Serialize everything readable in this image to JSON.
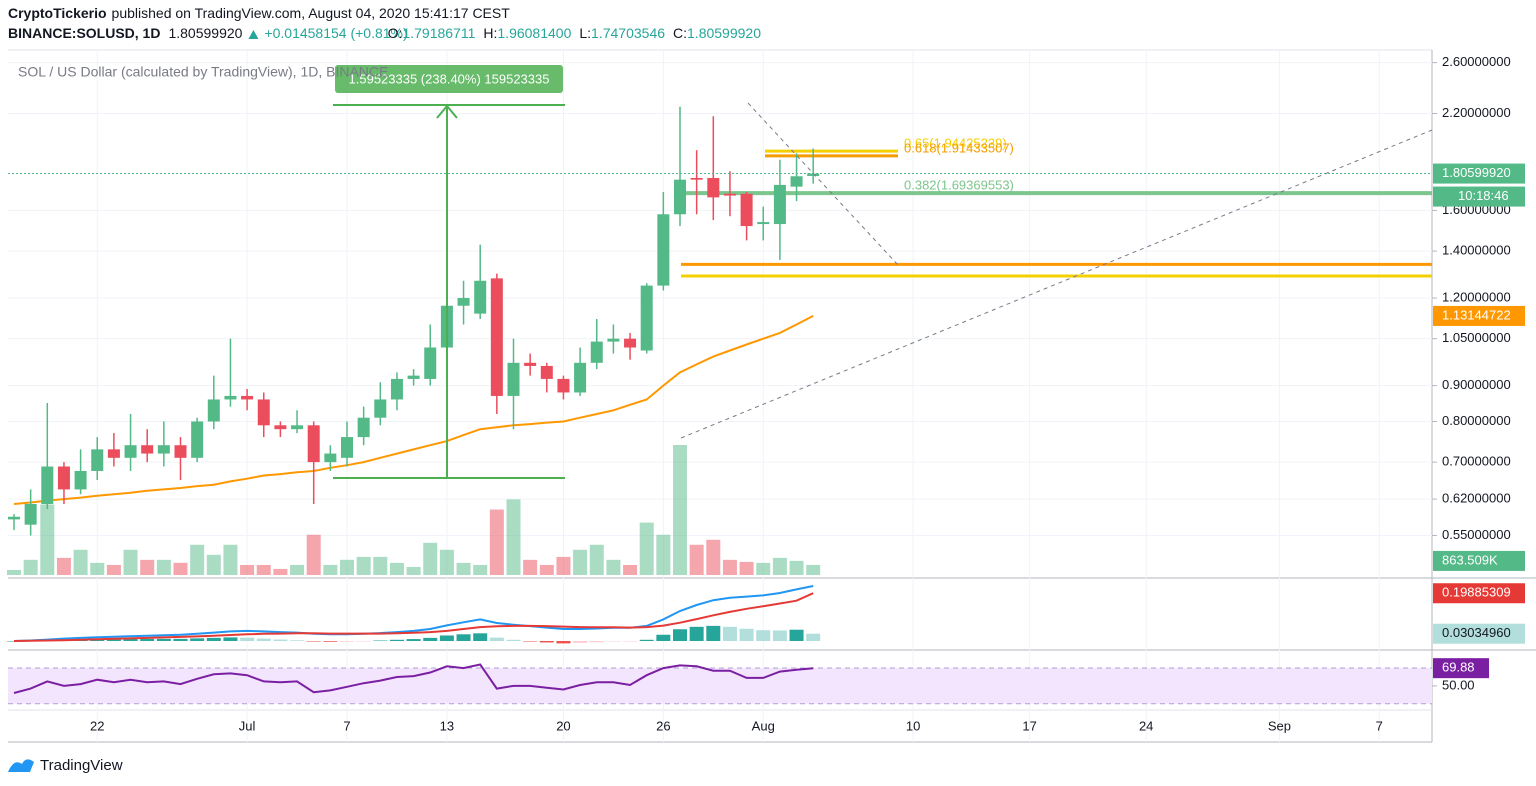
{
  "header": {
    "author": "CryptoTickerio",
    "byline": "published on TradingView.com, August 04, 2020 15:41:17 CEST",
    "symbol": "BINANCE:SOLUSD, 1D",
    "last": "1.80599920",
    "change": "+0.01458154 (+0.81%)",
    "ohlc": [
      {
        "k": "O:",
        "v": "1.79186711"
      },
      {
        "k": "H:",
        "v": "1.96081400"
      },
      {
        "k": "L:",
        "v": "1.74703546"
      },
      {
        "k": "C:",
        "v": "1.80599920"
      }
    ]
  },
  "footer": {
    "brand": "TradingView"
  },
  "chart_data": {
    "type": "candlestick",
    "title": "SOL / US Dollar (calculated by TradingView), 1D, BINANCE",
    "measure_label": "1.59523335 (238.40%) 159523335",
    "categories": [
      null,
      null,
      null,
      null,
      null,
      "22",
      null,
      null,
      null,
      null,
      null,
      null,
      null,
      null,
      "Jul",
      null,
      null,
      null,
      null,
      null,
      "7",
      null,
      null,
      null,
      null,
      null,
      "13",
      null,
      null,
      null,
      null,
      null,
      null,
      "20",
      null,
      null,
      null,
      null,
      null,
      "26",
      null,
      null,
      null,
      null,
      null,
      "Aug",
      null,
      null,
      null,
      null,
      null,
      null,
      null,
      null,
      "10",
      null,
      null,
      null,
      null,
      null,
      null,
      "17",
      null,
      null,
      null,
      null,
      null,
      null,
      "24",
      null,
      null,
      null,
      null,
      null,
      null,
      null,
      "Sep",
      null,
      null,
      null,
      null,
      null,
      "7",
      null,
      null,
      null
    ],
    "open": [
      0.58,
      0.57,
      0.61,
      0.69,
      0.64,
      0.68,
      0.73,
      0.71,
      0.74,
      0.72,
      0.74,
      0.71,
      0.8,
      0.86,
      0.87,
      0.86,
      0.79,
      0.78,
      0.79,
      0.7,
      0.71,
      0.76,
      0.81,
      0.86,
      0.92,
      0.92,
      1.02,
      1.17,
      1.14,
      1.28,
      0.87,
      0.97,
      0.96,
      0.92,
      0.88,
      0.97,
      1.04,
      1.05,
      1.01,
      1.25,
      1.58,
      1.78,
      1.78,
      1.69,
      1.69,
      1.53,
      1.53,
      1.73,
      1.79186711,
      null,
      null,
      null,
      null,
      null,
      null,
      null,
      null,
      null,
      null,
      null,
      null,
      null,
      null,
      null,
      null,
      null,
      null,
      null,
      null,
      null,
      null,
      null,
      null,
      null,
      null,
      null,
      null,
      null,
      null,
      null,
      null,
      null,
      null,
      null,
      null,
      null
    ],
    "high": [
      0.59,
      0.64,
      0.85,
      0.7,
      0.73,
      0.76,
      0.77,
      0.82,
      0.78,
      0.8,
      0.76,
      0.81,
      0.93,
      1.05,
      0.89,
      0.88,
      0.8,
      0.83,
      0.8,
      0.74,
      0.8,
      0.84,
      0.91,
      0.94,
      0.95,
      1.1,
      1.33,
      1.27,
      1.43,
      1.3,
      1.05,
      1.0,
      0.97,
      0.93,
      1.02,
      1.12,
      1.1,
      1.07,
      1.26,
      1.7,
      2.25,
      1.95,
      2.18,
      1.82,
      1.7,
      1.62,
      1.89,
      1.93,
      1.960814,
      null,
      null,
      null,
      null,
      null,
      null,
      null,
      null,
      null,
      null,
      null,
      null,
      null,
      null,
      null,
      null,
      null,
      null,
      null,
      null,
      null,
      null,
      null,
      null,
      null,
      null,
      null,
      null,
      null,
      null,
      null,
      null,
      null,
      null,
      null,
      null,
      null
    ],
    "low": [
      0.56,
      0.55,
      0.6,
      0.61,
      0.63,
      0.66,
      0.69,
      0.68,
      0.7,
      0.69,
      0.66,
      0.7,
      0.78,
      0.84,
      0.83,
      0.76,
      0.76,
      0.77,
      0.61,
      0.68,
      0.69,
      0.74,
      0.79,
      0.83,
      0.9,
      0.9,
      1.0,
      1.1,
      1.12,
      0.82,
      0.78,
      0.93,
      0.88,
      0.86,
      0.87,
      0.95,
      1.0,
      0.98,
      1.0,
      1.23,
      1.52,
      1.58,
      1.55,
      1.57,
      1.45,
      1.45,
      1.36,
      1.65,
      1.74703546,
      null,
      null,
      null,
      null,
      null,
      null,
      null,
      null,
      null,
      null,
      null,
      null,
      null,
      null,
      null,
      null,
      null,
      null,
      null,
      null,
      null,
      null,
      null,
      null,
      null,
      null,
      null,
      null,
      null,
      null,
      null,
      null,
      null,
      null,
      null,
      null,
      null
    ],
    "close": [
      0.585,
      0.61,
      0.69,
      0.64,
      0.68,
      0.73,
      0.71,
      0.74,
      0.72,
      0.74,
      0.71,
      0.8,
      0.86,
      0.87,
      0.86,
      0.79,
      0.78,
      0.79,
      0.7,
      0.72,
      0.76,
      0.81,
      0.86,
      0.92,
      0.93,
      1.02,
      1.17,
      1.2,
      1.27,
      0.87,
      0.97,
      0.96,
      0.92,
      0.88,
      0.97,
      1.04,
      1.05,
      1.02,
      1.25,
      1.58,
      1.77,
      1.77,
      1.67,
      1.68,
      1.52,
      1.54,
      1.74,
      1.79,
      1.8059992,
      null,
      null,
      null,
      null,
      null,
      null,
      null,
      null,
      null,
      null,
      null,
      null,
      null,
      null,
      null,
      null,
      null,
      null,
      null,
      null,
      null,
      null,
      null,
      null,
      null,
      null,
      null,
      null,
      null,
      null,
      null,
      null,
      null,
      null,
      null,
      null,
      null
    ],
    "volume": [
      430000,
      1300000,
      6040000,
      1470000,
      2160000,
      1040000,
      860000,
      2160000,
      1300000,
      1300000,
      1040000,
      2590000,
      1730000,
      2590000,
      860000,
      860000,
      520000,
      860000,
      3450000,
      860000,
      1300000,
      1550000,
      1550000,
      1040000,
      690000,
      2760000,
      2160000,
      1040000,
      860000,
      5610000,
      6480000,
      1300000,
      860000,
      1550000,
      2160000,
      2590000,
      1300000,
      860000,
      4490000,
      3450000,
      11140000,
      2590000,
      3020000,
      1300000,
      1120000,
      1040000,
      1470000,
      1210000,
      863509,
      null,
      null,
      null,
      null,
      null,
      null,
      null,
      null,
      null,
      null,
      null,
      null,
      null,
      null,
      null,
      null,
      null,
      null,
      null,
      null,
      null,
      null,
      null,
      null,
      null,
      null,
      null,
      null,
      null,
      null,
      null,
      null,
      null,
      null,
      null,
      null,
      null
    ],
    "ma": [
      0.61,
      0.613,
      0.617,
      0.62,
      0.623,
      0.627,
      0.63,
      0.633,
      0.637,
      0.64,
      0.643,
      0.647,
      0.65,
      0.657,
      0.663,
      0.67,
      0.673,
      0.677,
      0.68,
      0.687,
      0.693,
      0.7,
      0.71,
      0.72,
      0.73,
      0.74,
      0.75,
      0.765,
      0.78,
      0.785,
      0.79,
      0.793,
      0.797,
      0.8,
      0.81,
      0.82,
      0.83,
      0.845,
      0.86,
      0.9,
      0.94,
      0.965,
      0.99,
      1.01,
      1.03,
      1.05,
      1.07,
      1.1,
      1.13144722,
      null,
      null,
      null,
      null,
      null,
      null,
      null,
      null,
      null,
      null,
      null,
      null,
      null,
      null,
      null,
      null,
      null,
      null,
      null,
      null,
      null,
      null,
      null,
      null,
      null,
      null,
      null,
      null,
      null,
      null,
      null,
      null,
      null,
      null,
      null,
      null,
      null
    ],
    "macd": [
      0,
      0.002,
      0.006,
      0.01,
      0.013,
      0.016,
      0.018,
      0.02,
      0.022,
      0.024,
      0.026,
      0.03,
      0.035,
      0.04,
      0.042,
      0.04,
      0.037,
      0.035,
      0.03,
      0.028,
      0.028,
      0.03,
      0.033,
      0.037,
      0.042,
      0.05,
      0.065,
      0.078,
      0.09,
      0.075,
      0.068,
      0.062,
      0.056,
      0.05,
      0.05,
      0.052,
      0.055,
      0.055,
      0.063,
      0.09,
      0.125,
      0.15,
      0.17,
      0.18,
      0.185,
      0.19,
      0.2,
      0.215,
      0.229,
      null,
      null,
      null,
      null,
      null,
      null,
      null,
      null,
      null,
      null,
      null,
      null,
      null,
      null,
      null,
      null,
      null,
      null,
      null,
      null,
      null,
      null,
      null,
      null,
      null,
      null,
      null,
      null,
      null,
      null,
      null,
      null,
      null,
      null,
      null,
      null,
      null
    ],
    "signal": [
      0,
      0.001,
      0.002,
      0.003,
      0.005,
      0.007,
      0.009,
      0.011,
      0.013,
      0.015,
      0.017,
      0.019,
      0.022,
      0.025,
      0.028,
      0.03,
      0.031,
      0.032,
      0.032,
      0.031,
      0.031,
      0.031,
      0.031,
      0.032,
      0.034,
      0.037,
      0.042,
      0.05,
      0.058,
      0.061,
      0.063,
      0.063,
      0.062,
      0.06,
      0.058,
      0.057,
      0.057,
      0.056,
      0.058,
      0.064,
      0.076,
      0.091,
      0.107,
      0.121,
      0.134,
      0.145,
      0.156,
      0.168,
      0.19885309,
      null,
      null,
      null,
      null,
      null,
      null,
      null,
      null,
      null,
      null,
      null,
      null,
      null,
      null,
      null,
      null,
      null,
      null,
      null,
      null,
      null,
      null,
      null,
      null,
      null,
      null,
      null,
      null,
      null,
      null,
      null,
      null,
      null,
      null,
      null,
      null,
      null
    ],
    "hist": [
      0,
      0.001,
      0.004,
      0.007,
      0.008,
      0.009,
      0.009,
      0.009,
      0.009,
      0.009,
      0.009,
      0.011,
      0.013,
      0.015,
      0.014,
      0.01,
      0.006,
      0.003,
      -0.002,
      -0.003,
      -0.003,
      -0.001,
      0.002,
      0.005,
      0.008,
      0.013,
      0.023,
      0.028,
      0.032,
      0.014,
      0.005,
      -0.001,
      -0.006,
      -0.01,
      -0.008,
      -0.005,
      -0.002,
      -0.001,
      0.005,
      0.026,
      0.049,
      0.059,
      0.063,
      0.059,
      0.051,
      0.045,
      0.044,
      0.047,
      0.0303496,
      null,
      null,
      null,
      null,
      null,
      null,
      null,
      null,
      null,
      null,
      null,
      null,
      null,
      null,
      null,
      null,
      null,
      null,
      null,
      null,
      null,
      null,
      null,
      null,
      null,
      null,
      null,
      null,
      null,
      null,
      null,
      null,
      null,
      null,
      null,
      null,
      null
    ],
    "rsi": [
      42,
      47,
      55,
      50,
      52,
      57,
      54,
      57,
      54,
      55,
      52,
      58,
      63,
      64,
      62,
      55,
      54,
      55,
      43,
      45,
      49,
      53,
      56,
      60,
      61,
      65,
      72,
      70,
      74,
      47,
      50,
      50,
      48,
      46,
      51,
      54,
      54,
      51,
      62,
      70,
      73,
      72,
      67,
      67,
      59,
      59,
      66,
      68,
      69.88,
      null,
      null,
      null,
      null,
      null,
      null,
      null,
      null,
      null,
      null,
      null,
      null,
      null,
      null,
      null,
      null,
      null,
      null,
      null,
      null,
      null,
      null,
      null,
      null,
      null,
      null,
      null,
      null,
      null,
      null,
      null,
      null,
      null,
      null,
      null,
      null,
      null
    ],
    "log_scale": true,
    "ylim": [
      0.48,
      2.71
    ],
    "yticks": [
      {
        "value": 2.6,
        "label": "2.60000000"
      },
      {
        "value": 2.2,
        "label": "2.20000000"
      },
      {
        "value": 1.6,
        "label": "1.60000000"
      },
      {
        "value": 1.4,
        "label": "1.40000000"
      },
      {
        "value": 1.2,
        "label": "1.20000000"
      },
      {
        "value": 1.05,
        "label": "1.05000000"
      },
      {
        "value": 0.9,
        "label": "0.90000000"
      },
      {
        "value": 0.8,
        "label": "0.80000000"
      },
      {
        "value": 0.7,
        "label": "0.70000000"
      },
      {
        "value": 0.62,
        "label": "0.62000000"
      },
      {
        "value": 0.55,
        "label": "0.55000000"
      }
    ],
    "rsi_ylim": [
      23,
      88
    ],
    "rsi_yticks": [
      {
        "value": 50,
        "label": "50.00"
      }
    ],
    "rsi_bands": [
      70,
      30
    ],
    "levels": [
      {
        "value": 1.94425239,
        "label": "0.65(1.94425239)",
        "color": "#f5d000"
      },
      {
        "value": 1.91433507,
        "label": "0.618(1.91433507)",
        "color": "#f59c00"
      },
      {
        "value": 1.69369553,
        "label": "0.382(1.69369553)",
        "color": "#7cc58c"
      },
      {
        "value": 1.34,
        "color": "#ff9800"
      },
      {
        "value": 1.29,
        "color": "#f5d000"
      }
    ],
    "last_labels": {
      "close": "1.80599920",
      "countdown": "10:18:46",
      "ma": "1.13144722",
      "volume": "863.509K",
      "signal": "0.19885309",
      "hist": "0.03034960",
      "rsi": "69.88"
    },
    "colors": {
      "up": "#53b987",
      "down": "#eb4d5c",
      "ma": "#ff9800",
      "macd": "#2196f3",
      "signal": "#e53935",
      "rsi": "#7b1fa2"
    },
    "grid": true
  }
}
